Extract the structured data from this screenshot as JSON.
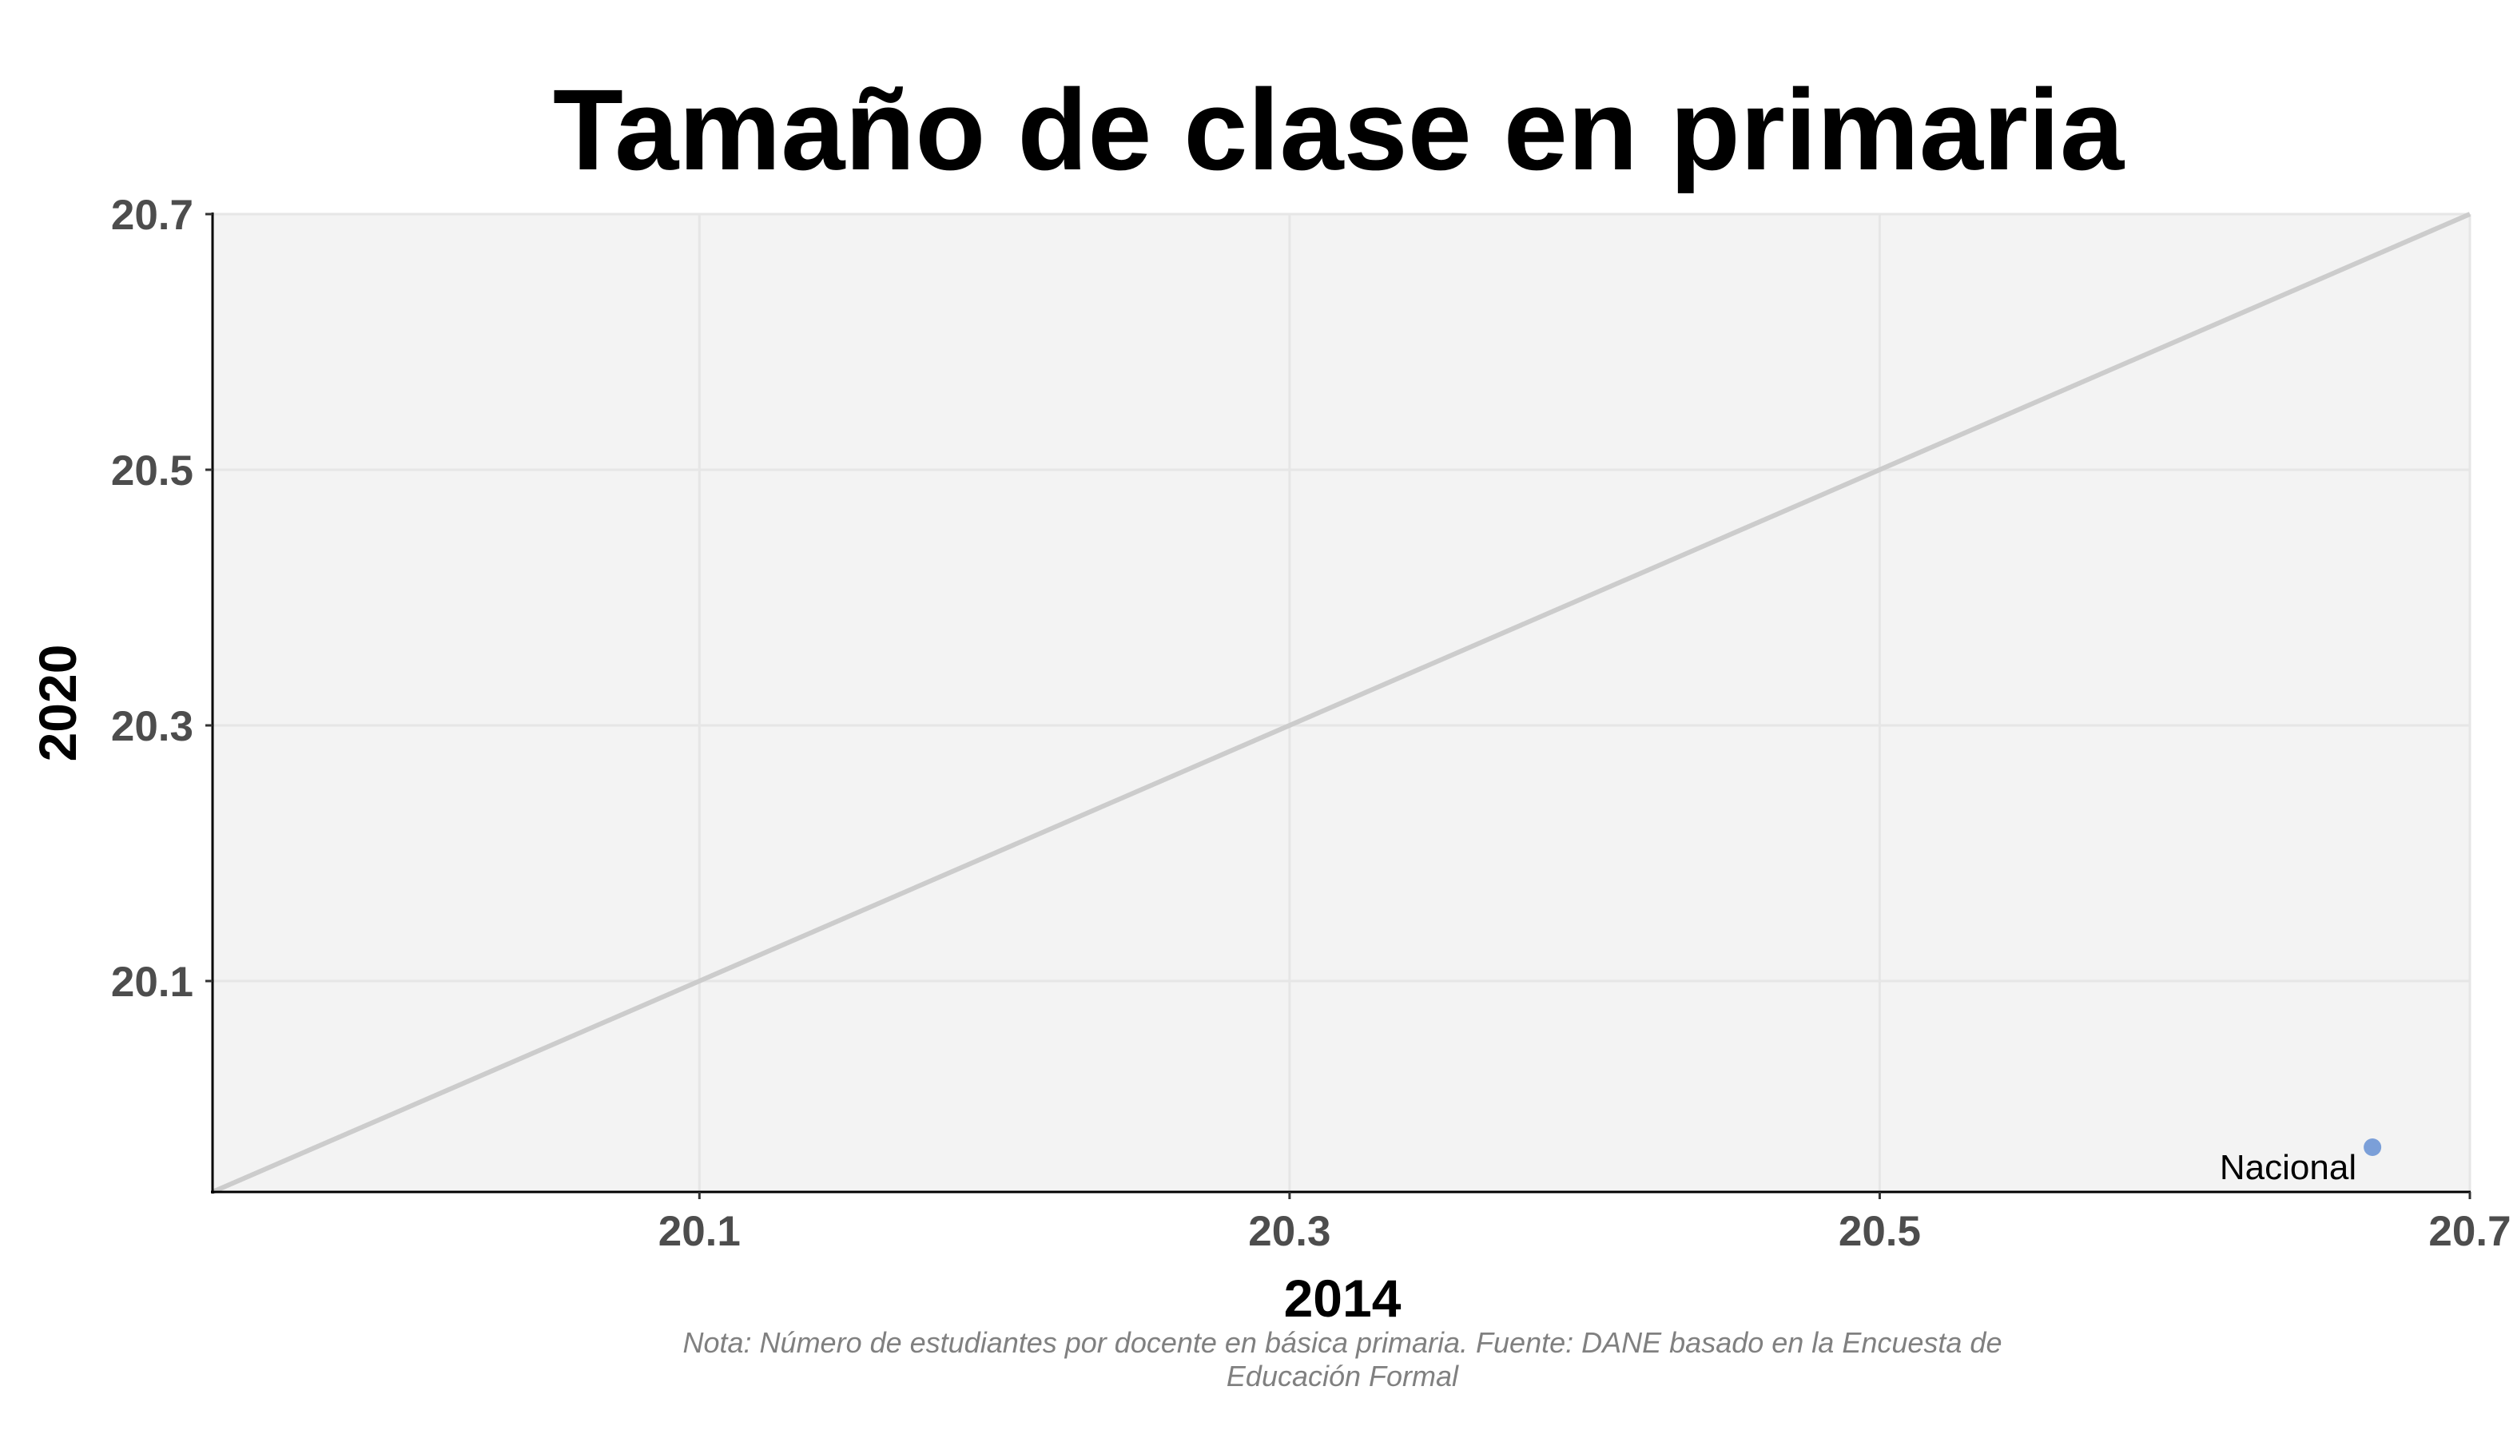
{
  "chart_data": {
    "type": "scatter",
    "title": "Tamaño de clase en primaria",
    "xlabel": "2014",
    "ylabel": "2020",
    "xlim": [
      19.935,
      20.7
    ],
    "ylim": [
      19.935,
      20.7
    ],
    "xticks": [
      20.1,
      20.3,
      20.5,
      20.7
    ],
    "yticks": [
      20.1,
      20.3,
      20.5,
      20.7
    ],
    "tick_labels_x": [
      "20.1",
      "20.3",
      "20.5",
      "20.7"
    ],
    "tick_labels_y": [
      "20.1",
      "20.3",
      "20.5",
      "20.7"
    ],
    "grid": true,
    "reference_line": {
      "type": "identity",
      "from": [
        19.935,
        19.935
      ],
      "to": [
        20.7,
        20.7
      ],
      "color": "#cccccc"
    },
    "series": [
      {
        "name": "Nacional",
        "points": [
          {
            "x": 20.667,
            "y": 19.97,
            "label": "Nacional"
          }
        ],
        "color": "#7b9fd8"
      }
    ],
    "caption": [
      "Nota: Número de estudiantes por docente en básica primaria. Fuente: DANE basado en la Encuesta de",
      "Educación Formal"
    ]
  },
  "colors": {
    "panel_bg": "#f3f3f3",
    "grid": "#e6e6e6",
    "axis": "#000000",
    "point": "#7b9fd8",
    "identity_line": "#cccccc"
  }
}
